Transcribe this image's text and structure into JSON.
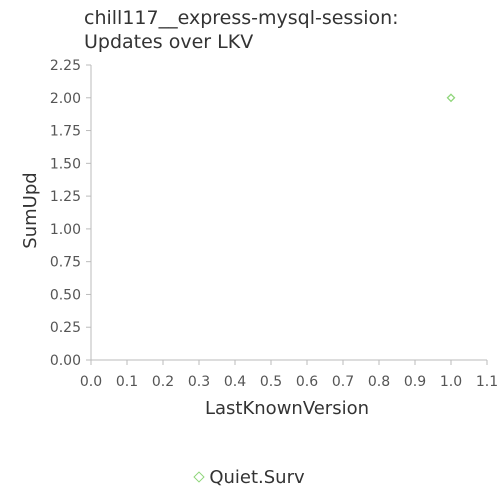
{
  "chart_data": {
    "type": "scatter",
    "title_lines": [
      "chill117__express-mysql-session:",
      "Updates over LKV"
    ],
    "xlabel": "LastKnownVersion",
    "ylabel": "SumUpd",
    "xlim": [
      0.0,
      1.1
    ],
    "ylim": [
      0.0,
      2.25
    ],
    "x_ticks": [
      "0.0",
      "0.1",
      "0.2",
      "0.3",
      "0.4",
      "0.5",
      "0.6",
      "0.7",
      "0.8",
      "0.9",
      "1.0",
      "1.1"
    ],
    "y_ticks": [
      "0.00",
      "0.25",
      "0.50",
      "0.75",
      "1.00",
      "1.25",
      "1.50",
      "1.75",
      "2.00",
      "2.25"
    ],
    "grid": false,
    "legend_position": "bottom",
    "series": [
      {
        "name": "Quiet.Surv",
        "color": "#8fd67a",
        "marker": "diamond",
        "points": [
          {
            "x": 1.0,
            "y": 2.0
          }
        ]
      }
    ]
  }
}
